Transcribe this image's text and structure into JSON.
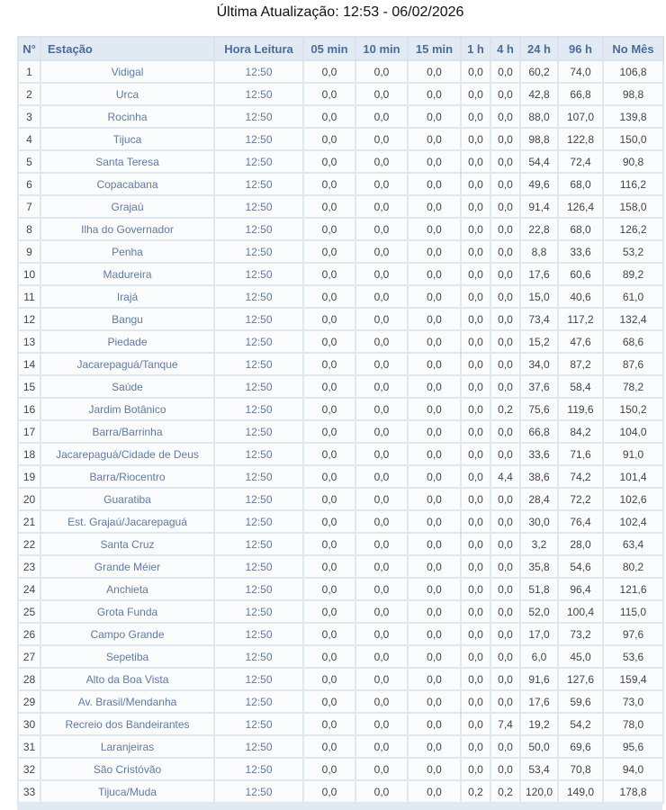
{
  "title": "Última Atualização: 12:53 - 06/02/2026",
  "columns": [
    "N°",
    "Estação",
    "Hora Leitura",
    "05 min",
    "10 min",
    "15 min",
    "1 h",
    "4 h",
    "24 h",
    "96 h",
    "No Mês"
  ],
  "rows": [
    [
      "1",
      "Vidigal",
      "12:50",
      "0,0",
      "0,0",
      "0,0",
      "0,0",
      "0,0",
      "60,2",
      "74,0",
      "106,8"
    ],
    [
      "2",
      "Urca",
      "12:50",
      "0,0",
      "0,0",
      "0,0",
      "0,0",
      "0,0",
      "42,8",
      "66,8",
      "98,8"
    ],
    [
      "3",
      "Rocinha",
      "12:50",
      "0,0",
      "0,0",
      "0,0",
      "0,0",
      "0,0",
      "88,0",
      "107,0",
      "139,8"
    ],
    [
      "4",
      "Tijuca",
      "12:50",
      "0,0",
      "0,0",
      "0,0",
      "0,0",
      "0,0",
      "98,8",
      "122,8",
      "150,0"
    ],
    [
      "5",
      "Santa Teresa",
      "12:50",
      "0,0",
      "0,0",
      "0,0",
      "0,0",
      "0,0",
      "54,4",
      "72,4",
      "90,8"
    ],
    [
      "6",
      "Copacabana",
      "12:50",
      "0,0",
      "0,0",
      "0,0",
      "0,0",
      "0,0",
      "49,6",
      "68,0",
      "116,2"
    ],
    [
      "7",
      "Grajaú",
      "12:50",
      "0,0",
      "0,0",
      "0,0",
      "0,0",
      "0,0",
      "91,4",
      "126,4",
      "158,0"
    ],
    [
      "8",
      "Ilha do Governador",
      "12:50",
      "0,0",
      "0,0",
      "0,0",
      "0,0",
      "0,0",
      "22,8",
      "68,0",
      "126,2"
    ],
    [
      "9",
      "Penha",
      "12:50",
      "0,0",
      "0,0",
      "0,0",
      "0,0",
      "0,0",
      "8,8",
      "33,6",
      "53,2"
    ],
    [
      "10",
      "Madureira",
      "12:50",
      "0,0",
      "0,0",
      "0,0",
      "0,0",
      "0,0",
      "17,6",
      "60,6",
      "89,2"
    ],
    [
      "11",
      "Irajá",
      "12:50",
      "0,0",
      "0,0",
      "0,0",
      "0,0",
      "0,0",
      "15,0",
      "40,6",
      "61,0"
    ],
    [
      "12",
      "Bangu",
      "12:50",
      "0,0",
      "0,0",
      "0,0",
      "0,0",
      "0,0",
      "73,4",
      "117,2",
      "132,4"
    ],
    [
      "13",
      "Piedade",
      "12:50",
      "0,0",
      "0,0",
      "0,0",
      "0,0",
      "0,0",
      "15,2",
      "47,6",
      "68,6"
    ],
    [
      "14",
      "Jacarepaguá/Tanque",
      "12:50",
      "0,0",
      "0,0",
      "0,0",
      "0,0",
      "0,0",
      "34,0",
      "87,2",
      "87,6"
    ],
    [
      "15",
      "Saúde",
      "12:50",
      "0,0",
      "0,0",
      "0,0",
      "0,0",
      "0,0",
      "37,6",
      "58,4",
      "78,2"
    ],
    [
      "16",
      "Jardim Botânico",
      "12:50",
      "0,0",
      "0,0",
      "0,0",
      "0,0",
      "0,2",
      "75,6",
      "119,6",
      "150,2"
    ],
    [
      "17",
      "Barra/Barrinha",
      "12:50",
      "0,0",
      "0,0",
      "0,0",
      "0,0",
      "0,0",
      "66,8",
      "84,2",
      "104,0"
    ],
    [
      "18",
      "Jacarepaguá/Cidade de Deus",
      "12:50",
      "0,0",
      "0,0",
      "0,0",
      "0,0",
      "0,0",
      "33,6",
      "71,6",
      "91,0"
    ],
    [
      "19",
      "Barra/Riocentro",
      "12:50",
      "0,0",
      "0,0",
      "0,0",
      "0,0",
      "4,4",
      "38,6",
      "74,2",
      "101,4"
    ],
    [
      "20",
      "Guaratiba",
      "12:50",
      "0,0",
      "0,0",
      "0,0",
      "0,0",
      "0,0",
      "28,4",
      "72,2",
      "102,6"
    ],
    [
      "21",
      "Est. Grajaú/Jacarepaguá",
      "12:50",
      "0,0",
      "0,0",
      "0,0",
      "0,0",
      "0,0",
      "30,0",
      "76,4",
      "102,4"
    ],
    [
      "22",
      "Santa Cruz",
      "12:50",
      "0,0",
      "0,0",
      "0,0",
      "0,0",
      "0,0",
      "3,2",
      "28,0",
      "63,4"
    ],
    [
      "23",
      "Grande Méier",
      "12:50",
      "0,0",
      "0,0",
      "0,0",
      "0,0",
      "0,0",
      "35,8",
      "54,6",
      "80,2"
    ],
    [
      "24",
      "Anchieta",
      "12:50",
      "0,0",
      "0,0",
      "0,0",
      "0,0",
      "0,0",
      "51,8",
      "96,4",
      "121,6"
    ],
    [
      "25",
      "Grota Funda",
      "12:50",
      "0,0",
      "0,0",
      "0,0",
      "0,0",
      "0,0",
      "52,0",
      "100,4",
      "115,0"
    ],
    [
      "26",
      "Campo Grande",
      "12:50",
      "0,0",
      "0,0",
      "0,0",
      "0,0",
      "0,0",
      "17,0",
      "73,2",
      "97,6"
    ],
    [
      "27",
      "Sepetiba",
      "12:50",
      "0,0",
      "0,0",
      "0,0",
      "0,0",
      "0,0",
      "6,0",
      "45,0",
      "53,6"
    ],
    [
      "28",
      "Alto da Boa Vista",
      "12:50",
      "0,0",
      "0,0",
      "0,0",
      "0,0",
      "0,0",
      "91,6",
      "127,6",
      "159,4"
    ],
    [
      "29",
      "Av. Brasil/Mendanha",
      "12:50",
      "0,0",
      "0,0",
      "0,0",
      "0,0",
      "0,0",
      "17,6",
      "59,6",
      "73,0"
    ],
    [
      "30",
      "Recreio dos Bandeirantes",
      "12:50",
      "0,0",
      "0,0",
      "0,0",
      "0,0",
      "7,4",
      "19,2",
      "54,2",
      "78,0"
    ],
    [
      "31",
      "Laranjeiras",
      "12:50",
      "0,0",
      "0,0",
      "0,0",
      "0,0",
      "0,0",
      "50,0",
      "69,6",
      "95,6"
    ],
    [
      "32",
      "São Cristóvão",
      "12:50",
      "0,0",
      "0,0",
      "0,0",
      "0,0",
      "0,0",
      "53,4",
      "70,8",
      "94,0"
    ],
    [
      "33",
      "Tijuca/Muda",
      "12:50",
      "0,0",
      "0,0",
      "0,0",
      "0,2",
      "0,2",
      "120,0",
      "149,0",
      "178,8"
    ]
  ]
}
